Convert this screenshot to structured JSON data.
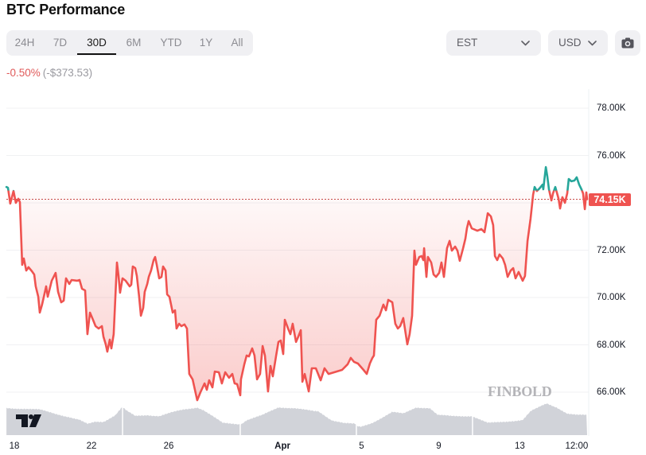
{
  "header": {
    "title": "BTC Performance"
  },
  "range_tabs": {
    "selected": "30D",
    "items": [
      {
        "label": "24H"
      },
      {
        "label": "7D"
      },
      {
        "label": "30D"
      },
      {
        "label": "6M"
      },
      {
        "label": "YTD"
      },
      {
        "label": "1Y"
      },
      {
        "label": "All"
      }
    ]
  },
  "change": {
    "percent": "-0.50%",
    "amount": "(-$373.53)"
  },
  "controls": {
    "timezone": {
      "value": "EST",
      "icon": "chevron-down-icon"
    },
    "currency": {
      "value": "USD",
      "icon": "chevron-down-icon"
    },
    "screenshot_button": {
      "icon": "camera-icon"
    }
  },
  "watermarks": {
    "finbold": "FINBOLD",
    "tradingview": "tradingview-logo-icon"
  },
  "colors": {
    "line_down": "#ef5350",
    "line_up": "#26a69a",
    "negative_text": "#e05a5a",
    "volume": "#d1d3d9",
    "price_label_bg": "#ef5350"
  },
  "chart_data": {
    "type": "area",
    "title": "BTC Performance",
    "subtitle": "30D",
    "xlabel": "",
    "ylabel": "",
    "currency": "USD",
    "ylim": [
      65.6,
      78.7
    ],
    "grid": true,
    "baseline_value": 74.52,
    "current_value": 74.15,
    "current_label": "74.15K",
    "change_percent": -0.5,
    "change_amount": -373.53,
    "gridlines": [
      78,
      76,
      74,
      72,
      70,
      68,
      66
    ],
    "y_ticks": [
      {
        "value": 78,
        "label": "78.00K"
      },
      {
        "value": 76,
        "label": "76.00K"
      },
      {
        "value": 72,
        "label": "72.00K"
      },
      {
        "value": 70,
        "label": "70.00K"
      },
      {
        "value": 68,
        "label": "68.00K"
      },
      {
        "value": 66,
        "label": "66.00K"
      }
    ],
    "x_ticks": [
      {
        "day": 0,
        "label": "18"
      },
      {
        "day": 4,
        "label": "22"
      },
      {
        "day": 8,
        "label": "26"
      },
      {
        "day": 13.9,
        "label": "Apr"
      },
      {
        "day": 18,
        "label": "5"
      },
      {
        "day": 22,
        "label": "9"
      },
      {
        "day": 26.2,
        "label": "13"
      },
      {
        "day": 29.15,
        "label": "12:00"
      }
    ],
    "series": [
      {
        "name": "BTC price (K USD), x = days since Mar 18",
        "points": [
          [
            -0.41,
            74.67
          ],
          [
            -0.33,
            74.64
          ],
          [
            -0.21,
            73.97
          ],
          [
            -0.04,
            74.5
          ],
          [
            0.08,
            74.0
          ],
          [
            0.21,
            74.17
          ],
          [
            0.29,
            74.03
          ],
          [
            0.41,
            71.38
          ],
          [
            0.49,
            71.65
          ],
          [
            0.62,
            71.14
          ],
          [
            0.74,
            71.28
          ],
          [
            0.91,
            71.11
          ],
          [
            1.03,
            70.97
          ],
          [
            1.11,
            70.47
          ],
          [
            1.24,
            70.03
          ],
          [
            1.32,
            69.36
          ],
          [
            1.44,
            69.7
          ],
          [
            1.65,
            70.47
          ],
          [
            1.73,
            70.03
          ],
          [
            1.94,
            70.71
          ],
          [
            2.14,
            71.04
          ],
          [
            2.27,
            70.24
          ],
          [
            2.43,
            69.8
          ],
          [
            2.56,
            69.87
          ],
          [
            2.68,
            70.81
          ],
          [
            2.85,
            70.57
          ],
          [
            2.97,
            70.74
          ],
          [
            3.26,
            70.71
          ],
          [
            3.38,
            70.74
          ],
          [
            3.51,
            70.37
          ],
          [
            3.67,
            70.3
          ],
          [
            3.79,
            68.45
          ],
          [
            3.92,
            69.36
          ],
          [
            4.08,
            69.06
          ],
          [
            4.21,
            68.79
          ],
          [
            4.37,
            68.69
          ],
          [
            4.54,
            68.79
          ],
          [
            4.62,
            68.35
          ],
          [
            4.74,
            68.02
          ],
          [
            4.82,
            67.71
          ],
          [
            4.95,
            68.22
          ],
          [
            5.03,
            67.85
          ],
          [
            5.15,
            68.45
          ],
          [
            5.32,
            71.48
          ],
          [
            5.4,
            70.91
          ],
          [
            5.48,
            70.2
          ],
          [
            5.61,
            70.81
          ],
          [
            5.77,
            70.71
          ],
          [
            5.98,
            70.47
          ],
          [
            6.06,
            70.54
          ],
          [
            6.14,
            71.31
          ],
          [
            6.27,
            71.24
          ],
          [
            6.35,
            70.91
          ],
          [
            6.47,
            70.03
          ],
          [
            6.56,
            69.23
          ],
          [
            6.68,
            69.56
          ],
          [
            6.76,
            70.24
          ],
          [
            6.89,
            70.57
          ],
          [
            6.97,
            70.87
          ],
          [
            7.09,
            71.14
          ],
          [
            7.22,
            71.58
          ],
          [
            7.3,
            71.71
          ],
          [
            7.38,
            71.38
          ],
          [
            7.51,
            70.81
          ],
          [
            7.63,
            70.87
          ],
          [
            7.71,
            71.31
          ],
          [
            7.84,
            71.14
          ],
          [
            7.92,
            70.13
          ],
          [
            8.04,
            70.03
          ],
          [
            8.21,
            69.36
          ],
          [
            8.33,
            69.46
          ],
          [
            8.41,
            68.69
          ],
          [
            8.54,
            68.89
          ],
          [
            8.66,
            68.79
          ],
          [
            8.82,
            68.86
          ],
          [
            8.95,
            68.69
          ],
          [
            9.07,
            66.77
          ],
          [
            9.24,
            66.54
          ],
          [
            9.36,
            66.1
          ],
          [
            9.48,
            65.66
          ],
          [
            9.65,
            66.0
          ],
          [
            9.86,
            66.37
          ],
          [
            9.98,
            66.1
          ],
          [
            10.1,
            66.5
          ],
          [
            10.27,
            66.2
          ],
          [
            10.39,
            66.87
          ],
          [
            10.6,
            66.84
          ],
          [
            10.76,
            66.37
          ],
          [
            10.93,
            66.84
          ],
          [
            11.13,
            66.61
          ],
          [
            11.3,
            66.77
          ],
          [
            11.42,
            66.37
          ],
          [
            11.55,
            66.34
          ],
          [
            11.71,
            65.87
          ],
          [
            11.75,
            66.54
          ],
          [
            11.92,
            67.18
          ],
          [
            12.04,
            67.55
          ],
          [
            12.16,
            67.51
          ],
          [
            12.33,
            67.85
          ],
          [
            12.45,
            67.55
          ],
          [
            12.58,
            66.54
          ],
          [
            12.74,
            66.77
          ],
          [
            12.87,
            67.95
          ],
          [
            12.99,
            67.55
          ],
          [
            13.15,
            66.03
          ],
          [
            13.28,
            67.11
          ],
          [
            13.4,
            66.67
          ],
          [
            13.57,
            67.55
          ],
          [
            13.69,
            68.12
          ],
          [
            13.81,
            68.18
          ],
          [
            13.94,
            67.61
          ],
          [
            14.02,
            69.06
          ],
          [
            14.19,
            68.69
          ],
          [
            14.31,
            68.45
          ],
          [
            14.43,
            68.89
          ],
          [
            14.6,
            68.12
          ],
          [
            14.72,
            68.35
          ],
          [
            14.85,
            68.62
          ],
          [
            14.93,
            66.44
          ],
          [
            15.05,
            66.77
          ],
          [
            15.26,
            66.03
          ],
          [
            15.42,
            67.01
          ],
          [
            15.63,
            67.01
          ],
          [
            15.88,
            66.5
          ],
          [
            16.08,
            67.01
          ],
          [
            16.29,
            66.77
          ],
          [
            16.58,
            66.84
          ],
          [
            16.99,
            66.94
          ],
          [
            17.28,
            67.18
          ],
          [
            17.44,
            67.45
          ],
          [
            17.61,
            67.28
          ],
          [
            17.81,
            67.21
          ],
          [
            18.1,
            66.94
          ],
          [
            18.27,
            66.77
          ],
          [
            18.43,
            67.21
          ],
          [
            18.56,
            67.45
          ],
          [
            18.64,
            67.55
          ],
          [
            18.76,
            69.06
          ],
          [
            18.93,
            69.23
          ],
          [
            19.13,
            69.7
          ],
          [
            19.26,
            69.46
          ],
          [
            19.38,
            69.9
          ],
          [
            19.59,
            69.8
          ],
          [
            19.75,
            68.89
          ],
          [
            19.88,
            68.69
          ],
          [
            20.0,
            68.79
          ],
          [
            20.16,
            69.13
          ],
          [
            20.37,
            68.02
          ],
          [
            20.49,
            68.45
          ],
          [
            20.62,
            69.23
          ],
          [
            20.74,
            71.98
          ],
          [
            20.82,
            71.38
          ],
          [
            20.99,
            71.71
          ],
          [
            21.11,
            71.75
          ],
          [
            21.2,
            71.58
          ],
          [
            21.24,
            72.08
          ],
          [
            21.36,
            70.87
          ],
          [
            21.44,
            71.71
          ],
          [
            21.61,
            71.48
          ],
          [
            21.73,
            70.97
          ],
          [
            21.86,
            70.87
          ],
          [
            22.02,
            71.04
          ],
          [
            22.14,
            71.48
          ],
          [
            22.27,
            70.87
          ],
          [
            22.43,
            72.08
          ],
          [
            22.56,
            72.39
          ],
          [
            22.68,
            71.98
          ],
          [
            22.85,
            72.15
          ],
          [
            22.97,
            71.98
          ],
          [
            23.09,
            71.55
          ],
          [
            23.26,
            72.08
          ],
          [
            23.38,
            72.49
          ],
          [
            23.46,
            72.92
          ],
          [
            23.55,
            73.23
          ],
          [
            23.71,
            72.92
          ],
          [
            24.0,
            72.82
          ],
          [
            24.21,
            72.89
          ],
          [
            24.37,
            72.76
          ],
          [
            24.54,
            73.56
          ],
          [
            24.7,
            73.43
          ],
          [
            24.82,
            73.06
          ],
          [
            24.91,
            71.75
          ],
          [
            25.03,
            71.58
          ],
          [
            25.15,
            71.82
          ],
          [
            25.32,
            71.65
          ],
          [
            25.44,
            71.38
          ],
          [
            25.57,
            70.87
          ],
          [
            25.73,
            71.14
          ],
          [
            25.86,
            71.24
          ],
          [
            25.98,
            70.81
          ],
          [
            26.14,
            71.08
          ],
          [
            26.35,
            70.71
          ],
          [
            26.47,
            70.91
          ],
          [
            26.6,
            72.39
          ],
          [
            26.76,
            73.33
          ],
          [
            26.89,
            74.34
          ],
          [
            26.97,
            74.67
          ],
          [
            27.09,
            74.5
          ],
          [
            27.22,
            74.61
          ],
          [
            27.38,
            74.77
          ],
          [
            27.42,
            74.57
          ],
          [
            27.55,
            75.51
          ],
          [
            27.63,
            75.11
          ],
          [
            27.71,
            74.57
          ],
          [
            27.84,
            74.1
          ],
          [
            27.92,
            74.4
          ],
          [
            28.04,
            74.67
          ],
          [
            28.21,
            74.17
          ],
          [
            28.29,
            73.76
          ],
          [
            28.41,
            74.24
          ],
          [
            28.54,
            74.0
          ],
          [
            28.66,
            74.4
          ],
          [
            28.74,
            75.01
          ],
          [
            28.87,
            74.91
          ],
          [
            29.03,
            74.94
          ],
          [
            29.15,
            75.08
          ],
          [
            29.28,
            74.77
          ],
          [
            29.4,
            74.57
          ],
          [
            29.48,
            74.4
          ],
          [
            29.57,
            73.73
          ],
          [
            29.65,
            74.44
          ],
          [
            29.69,
            74.15
          ]
        ]
      }
    ],
    "volume": {
      "name": "Volume (relative %, no axis)",
      "points": [
        [
          -0.41,
          81
        ],
        [
          0.49,
          79
        ],
        [
          1.32,
          76
        ],
        [
          2.14,
          64
        ],
        [
          2.76,
          55
        ],
        [
          3.38,
          45
        ],
        [
          3.79,
          33
        ],
        [
          4.21,
          40
        ],
        [
          4.62,
          40
        ],
        [
          5.24,
          60
        ],
        [
          5.57,
          83
        ],
        [
          5.65,
          81
        ],
        [
          5.86,
          71
        ],
        [
          6.27,
          57
        ],
        [
          6.89,
          60
        ],
        [
          7.51,
          57
        ],
        [
          8.12,
          67
        ],
        [
          8.74,
          76
        ],
        [
          9.48,
          83
        ],
        [
          9.77,
          76
        ],
        [
          10.19,
          60
        ],
        [
          10.8,
          36
        ],
        [
          11.63,
          33
        ],
        [
          11.75,
          33
        ],
        [
          12.04,
          45
        ],
        [
          12.87,
          60
        ],
        [
          13.69,
          83
        ],
        [
          14.52,
          81
        ],
        [
          15.55,
          71
        ],
        [
          15.75,
          71
        ],
        [
          16.45,
          45
        ],
        [
          17.11,
          36
        ],
        [
          17.69,
          33
        ],
        [
          17.77,
          26
        ],
        [
          17.94,
          24
        ],
        [
          18.52,
          36
        ],
        [
          19.05,
          52
        ],
        [
          19.59,
          69
        ],
        [
          20.16,
          64
        ],
        [
          20.82,
          83
        ],
        [
          21.53,
          81
        ],
        [
          21.94,
          60
        ],
        [
          22.64,
          57
        ],
        [
          23.71,
          57
        ],
        [
          23.79,
          55
        ],
        [
          24.54,
          36
        ],
        [
          25.36,
          40
        ],
        [
          26.35,
          45
        ],
        [
          26.76,
          71
        ],
        [
          27.59,
          95
        ],
        [
          28.12,
          83
        ],
        [
          28.66,
          64
        ],
        [
          29.15,
          60
        ],
        [
          29.69,
          60
        ]
      ],
      "separators_day": [
        5.61,
        11.71,
        17.73,
        23.75
      ]
    }
  }
}
